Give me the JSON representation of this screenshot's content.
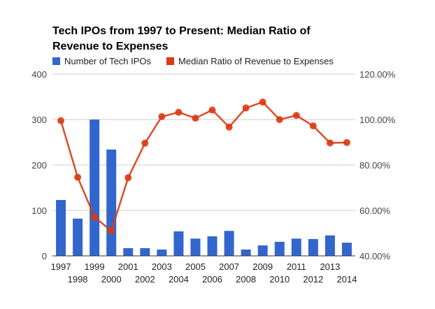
{
  "chart_data": {
    "type": "bar+line",
    "title": "Tech IPOs from 1997 to Present: Median Ratio of Revenue to Expenses",
    "categories": [
      "1997",
      "1998",
      "1999",
      "2000",
      "2001",
      "2002",
      "2003",
      "2004",
      "2005",
      "2006",
      "2007",
      "2008",
      "2009",
      "2010",
      "2011",
      "2012",
      "2013",
      "2014"
    ],
    "series": [
      {
        "name": "Number of Tech IPOs",
        "type": "bar",
        "axis": "left",
        "color": "#3366cc",
        "values": [
          123,
          82,
          300,
          234,
          17,
          17,
          14,
          54,
          38,
          43,
          55,
          14,
          23,
          31,
          38,
          37,
          45,
          29
        ]
      },
      {
        "name": "Median Ratio of Revenue to Expenses",
        "type": "line",
        "axis": "right",
        "color": "#dc3912",
        "unit": "%",
        "values": [
          99.5,
          74.6,
          57.1,
          51.0,
          74.4,
          89.6,
          101.3,
          103.2,
          100.6,
          104.2,
          96.7,
          105.1,
          107.7,
          100.0,
          101.8,
          97.2,
          89.7,
          89.9
        ]
      }
    ],
    "left_axis": {
      "ylim": [
        0,
        400
      ],
      "ticks": [
        "0",
        "100",
        "200",
        "300",
        "400"
      ]
    },
    "right_axis": {
      "ylim": [
        40,
        120
      ],
      "ticks": [
        "40.00%",
        "60.00%",
        "80.00%",
        "100.00%",
        "120.00%"
      ]
    },
    "grid": true,
    "legend": "top"
  }
}
